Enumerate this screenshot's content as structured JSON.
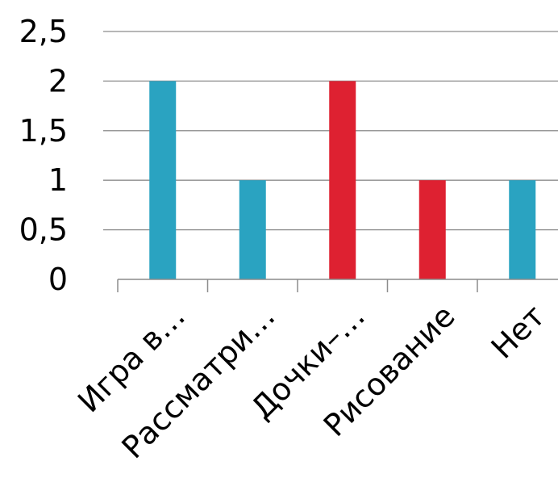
{
  "chart_data": {
    "type": "bar",
    "categories": [
      "Игра в…",
      "Рассматри…",
      "Дочки–…",
      "Рисование",
      "Нет"
    ],
    "values": [
      2,
      1,
      2,
      1,
      1
    ],
    "bar_colors": [
      "#2aa3c1",
      "#2aa3c1",
      "#de2131",
      "#de2131",
      "#2aa3c1"
    ],
    "ylim": [
      0,
      2.5
    ],
    "yticks": [
      0,
      0.5,
      1,
      1.5,
      2,
      2.5
    ],
    "ytick_labels": [
      "0",
      "0,5",
      "1",
      "1,5",
      "2",
      "2,5"
    ],
    "grid": true,
    "title": "",
    "xlabel": "",
    "ylabel": ""
  },
  "colors": {
    "grid": "#8c8c8c",
    "axis": "#8c8c8c"
  }
}
